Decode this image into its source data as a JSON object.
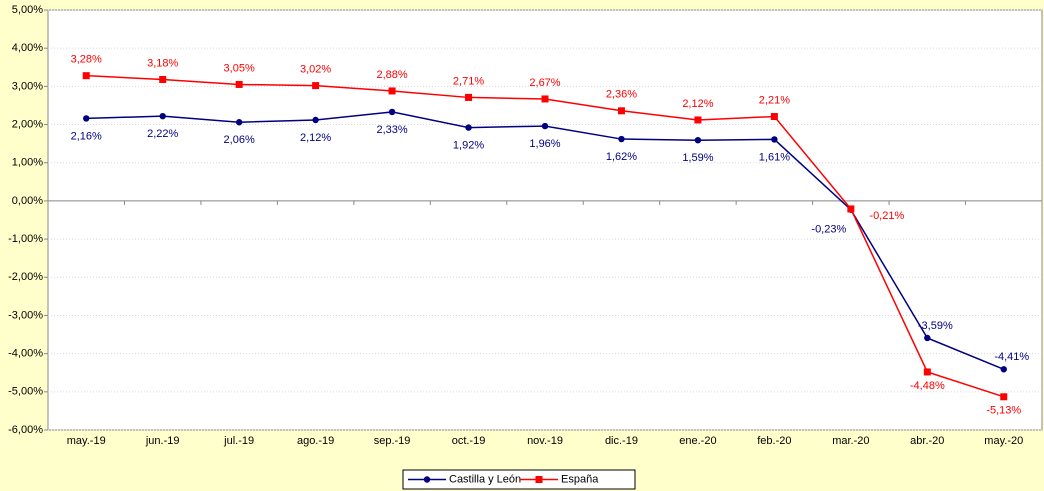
{
  "chart_data": {
    "type": "line",
    "categories": [
      "may.-19",
      "jun.-19",
      "jul.-19",
      "ago.-19",
      "sep.-19",
      "oct.-19",
      "nov.-19",
      "dic.-19",
      "ene.-20",
      "feb.-20",
      "mar.-20",
      "abr.-20",
      "may.-20"
    ],
    "series": [
      {
        "name": "Castilla y León",
        "color": "#000080",
        "values": [
          2.16,
          2.22,
          2.06,
          2.12,
          2.33,
          1.92,
          1.96,
          1.62,
          1.59,
          1.61,
          -0.23,
          -3.59,
          -4.41
        ],
        "value_labels": [
          "2,16%",
          "2,22%",
          "2,06%",
          "2,12%",
          "2,33%",
          "1,92%",
          "1,96%",
          "1,62%",
          "1,59%",
          "1,61%",
          "-0,23%",
          "-3,59%",
          "-4,41%"
        ]
      },
      {
        "name": "España",
        "color": "#ff0000",
        "values": [
          3.28,
          3.18,
          3.05,
          3.02,
          2.88,
          2.71,
          2.67,
          2.36,
          2.12,
          2.21,
          -0.21,
          -4.48,
          -5.13
        ],
        "value_labels": [
          "3,28%",
          "3,18%",
          "3,05%",
          "3,02%",
          "2,88%",
          "2,71%",
          "2,67%",
          "2,36%",
          "2,12%",
          "2,21%",
          "-0,21%",
          "-4,48%",
          "-5,13%"
        ]
      }
    ],
    "ylim": [
      -6,
      5
    ],
    "yticks": [
      {
        "value": -6,
        "label": "-6,00%"
      },
      {
        "value": -5,
        "label": "-5,00%"
      },
      {
        "value": -4,
        "label": "-4,00%"
      },
      {
        "value": -3,
        "label": "-3,00%"
      },
      {
        "value": -2,
        "label": "-2,00%"
      },
      {
        "value": -1,
        "label": "-1,00%"
      },
      {
        "value": 0,
        "label": "0,00%"
      },
      {
        "value": 1,
        "label": "1,00%"
      },
      {
        "value": 2,
        "label": "2,00%"
      },
      {
        "value": 3,
        "label": "3,00%"
      },
      {
        "value": 4,
        "label": "4,00%"
      },
      {
        "value": 5,
        "label": "5,00%"
      }
    ],
    "grid": true,
    "legend": "bottom"
  }
}
